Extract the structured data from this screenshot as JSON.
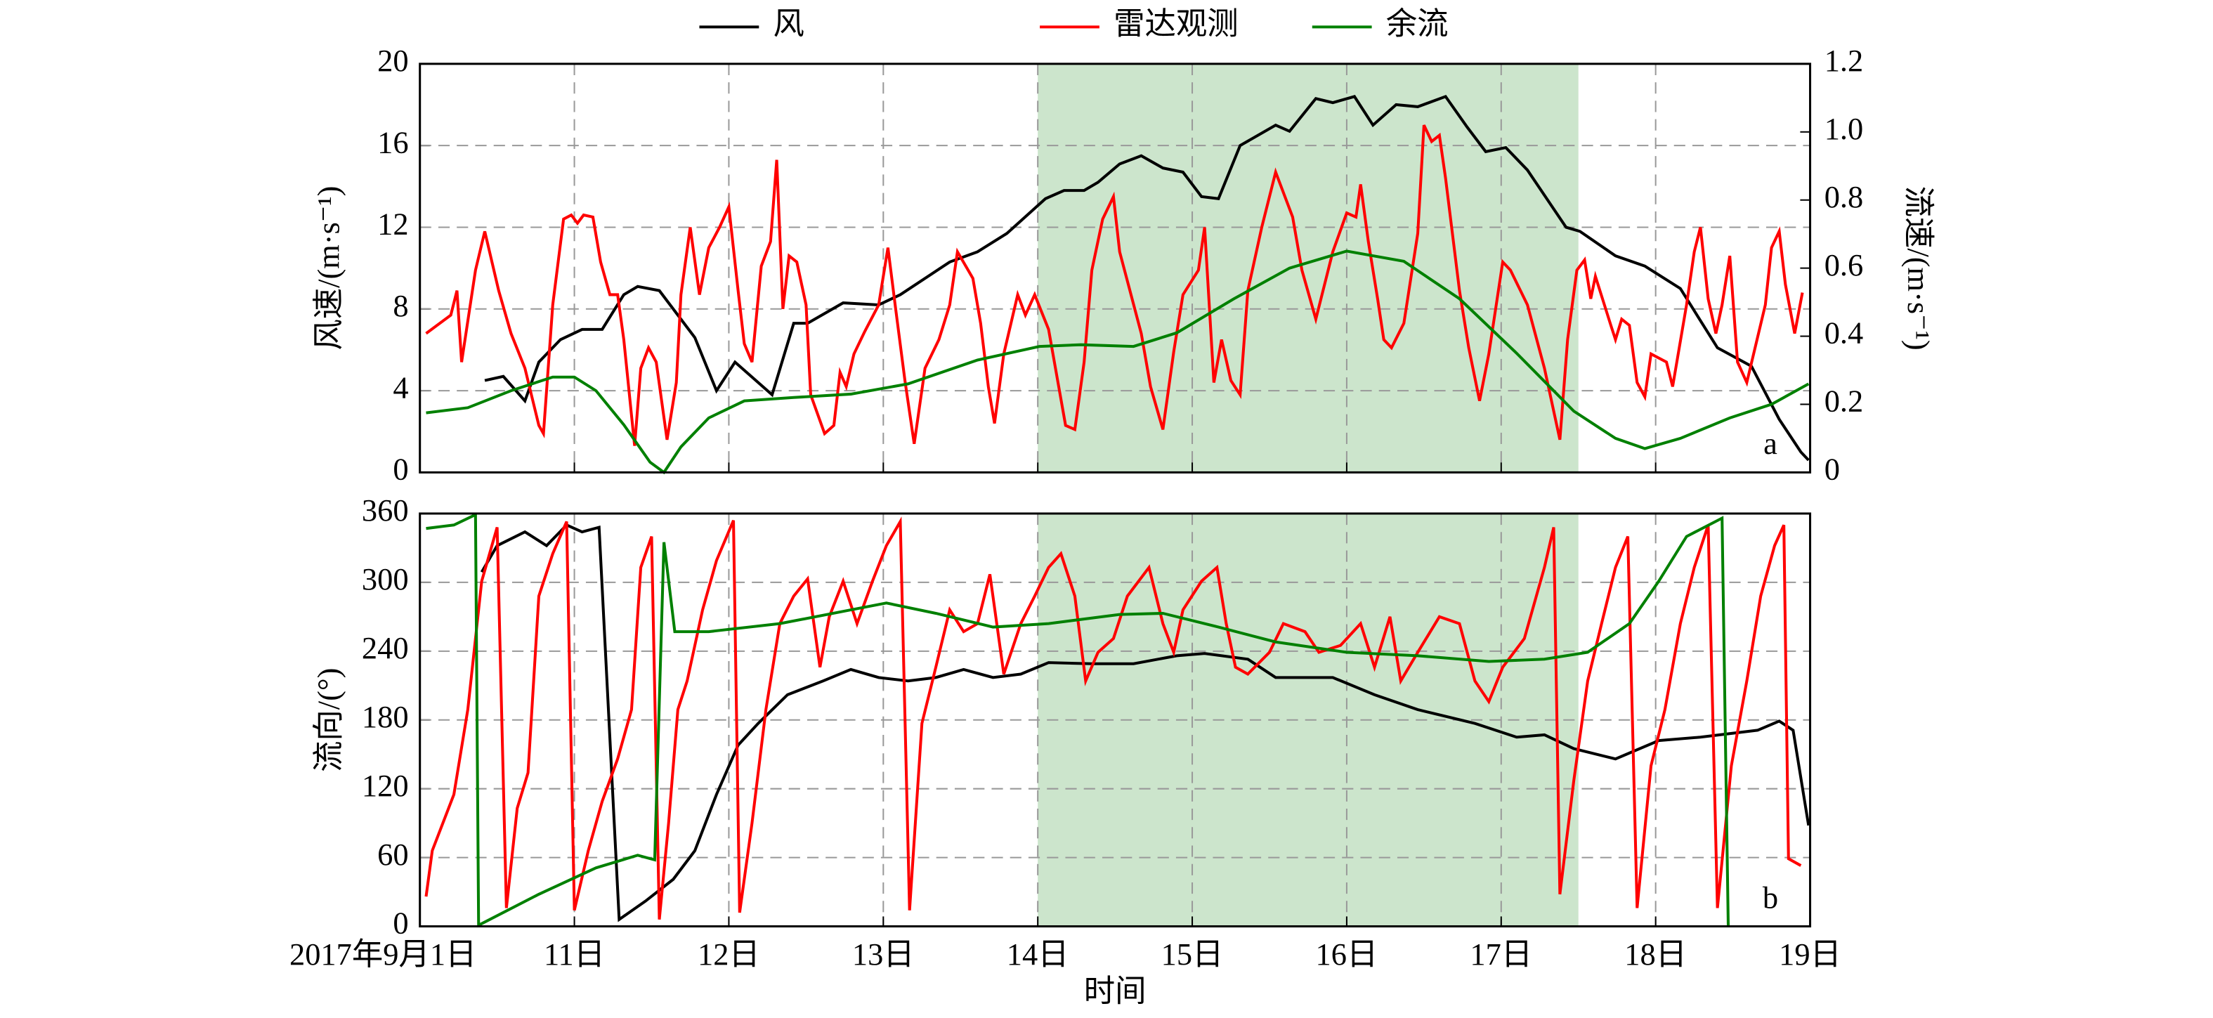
{
  "chart_data": [
    {
      "type": "line",
      "annotation": "a",
      "ylabel": "风速/(m·s⁻¹)",
      "y2label": "流速/(m·s⁻¹)",
      "xlim": [
        10,
        19
      ],
      "xticks": [
        11,
        12,
        13,
        14,
        15,
        16,
        17,
        18
      ],
      "ylim": [
        0,
        20
      ],
      "yticks": [
        0,
        4,
        8,
        12,
        16,
        20
      ],
      "y2lim": [
        0,
        1.2
      ],
      "y2ticks": [
        0,
        0.2,
        0.4,
        0.6,
        0.8,
        {
          "value": 1,
          "label": "1.0"
        },
        1.2
      ],
      "highlight": [
        14,
        17.5
      ],
      "highlight_color": "#cce5cc",
      "grid": true,
      "legend": "top",
      "series": [
        {
          "name": "风",
          "color": "#000000",
          "x": [
            10.42,
            10.54,
            10.68,
            10.77,
            10.91,
            11.05,
            11.18,
            11.32,
            11.41,
            11.55,
            11.78,
            11.92,
            12.04,
            12.28,
            12.42,
            12.51,
            12.74,
            12.97,
            13.11,
            13.29,
            13.43,
            13.61,
            13.8,
            14.05,
            14.17,
            14.3,
            14.39,
            14.53,
            14.67,
            14.81,
            14.94,
            15.06,
            15.17,
            15.31,
            15.54,
            15.63,
            15.8,
            15.91,
            16.05,
            16.17,
            16.32,
            16.46,
            16.64,
            16.78,
            16.9,
            17.03,
            17.17,
            17.42,
            17.51,
            17.74,
            17.93,
            18.16,
            18.4,
            18.62,
            18.8,
            18.94,
            18.99
          ],
          "values": [
            4.5,
            4.7,
            3.5,
            5.4,
            6.5,
            7.0,
            7.0,
            8.7,
            9.1,
            8.9,
            6.6,
            4.0,
            5.4,
            3.8,
            7.3,
            7.3,
            8.3,
            8.2,
            8.7,
            9.6,
            10.3,
            10.8,
            11.7,
            13.4,
            13.8,
            13.8,
            14.2,
            15.1,
            15.5,
            14.9,
            14.7,
            13.5,
            13.4,
            16.0,
            17.0,
            16.7,
            18.3,
            18.1,
            18.4,
            17.0,
            18.0,
            17.9,
            18.4,
            16.9,
            15.7,
            15.9,
            14.8,
            12.0,
            11.8,
            10.6,
            10.1,
            9.0,
            6.1,
            5.2,
            2.6,
            1.0,
            0.6
          ]
        },
        {
          "name": "雷达观测",
          "color": "#ff0000",
          "x": [
            10.04,
            10.2,
            10.24,
            10.27,
            10.36,
            10.42,
            10.51,
            10.59,
            10.68,
            10.77,
            10.8,
            10.86,
            10.93,
            10.98,
            11.02,
            11.06,
            11.12,
            11.17,
            11.23,
            11.28,
            11.32,
            11.39,
            11.43,
            11.48,
            11.53,
            11.6,
            11.66,
            11.69,
            11.75,
            11.81,
            11.87,
            11.94,
            12.0,
            12.06,
            12.1,
            12.15,
            12.21,
            12.27,
            12.31,
            12.35,
            12.39,
            12.44,
            12.5,
            12.53,
            12.62,
            12.68,
            12.72,
            12.76,
            12.81,
            12.88,
            12.97,
            13.03,
            13.08,
            13.14,
            13.2,
            13.27,
            13.36,
            13.43,
            13.48,
            13.58,
            13.63,
            13.68,
            13.72,
            13.78,
            13.87,
            13.92,
            13.98,
            14.07,
            14.18,
            14.24,
            14.3,
            14.35,
            14.42,
            14.49,
            14.53,
            14.67,
            14.73,
            14.81,
            14.88,
            14.94,
            15.04,
            15.08,
            15.14,
            15.19,
            15.25,
            15.31,
            15.36,
            15.45,
            15.54,
            15.65,
            15.71,
            15.8,
            15.91,
            16.0,
            16.06,
            16.09,
            16.14,
            16.2,
            16.24,
            16.29,
            16.37,
            16.46,
            16.5,
            16.55,
            16.6,
            16.64,
            16.73,
            16.79,
            16.86,
            16.92,
            17.01,
            17.06,
            17.17,
            17.28,
            17.38,
            17.43,
            17.49,
            17.54,
            17.58,
            17.61,
            17.71,
            17.74,
            17.78,
            17.83,
            17.88,
            17.93,
            17.97,
            18.07,
            18.11,
            18.2,
            18.25,
            18.29,
            18.34,
            18.39,
            18.43,
            18.48,
            18.53,
            18.59,
            18.71,
            18.75,
            18.8,
            18.84,
            18.9,
            18.95
          ],
          "values": [
            6.8,
            7.7,
            8.9,
            5.4,
            9.9,
            11.8,
            8.9,
            6.8,
            5.1,
            2.3,
            1.9,
            8.2,
            12.4,
            12.6,
            12.2,
            12.6,
            12.5,
            10.3,
            8.7,
            8.7,
            6.5,
            1.3,
            5.1,
            6.1,
            5.4,
            1.6,
            4.4,
            8.7,
            12.0,
            8.7,
            11.0,
            12.0,
            13.0,
            8.9,
            6.3,
            5.4,
            10.1,
            11.3,
            15.3,
            8.0,
            10.6,
            10.3,
            8.2,
            3.8,
            1.9,
            2.3,
            4.9,
            4.2,
            5.8,
            6.9,
            8.2,
            11.0,
            8.0,
            4.5,
            1.4,
            5.1,
            6.5,
            8.2,
            10.8,
            9.5,
            7.3,
            4.2,
            2.4,
            5.8,
            8.7,
            7.7,
            8.7,
            7.0,
            2.3,
            2.1,
            5.4,
            9.9,
            12.4,
            13.5,
            10.8,
            6.8,
            4.2,
            2.1,
            5.9,
            8.7,
            9.9,
            12.0,
            4.4,
            6.5,
            4.5,
            3.8,
            8.9,
            12.0,
            14.7,
            12.5,
            9.9,
            7.5,
            10.8,
            12.7,
            12.5,
            14.1,
            11.3,
            8.5,
            6.5,
            6.1,
            7.3,
            11.7,
            17.0,
            16.2,
            16.5,
            14.4,
            8.9,
            6.1,
            3.5,
            5.8,
            10.3,
            9.9,
            8.2,
            5.1,
            1.6,
            6.5,
            9.9,
            10.4,
            8.5,
            9.6,
            7.2,
            6.5,
            7.5,
            7.2,
            4.4,
            3.7,
            5.8,
            5.4,
            4.2,
            8.2,
            10.8,
            12.0,
            8.5,
            6.8,
            8.2,
            10.6,
            5.4,
            4.4,
            8.2,
            11.0,
            11.8,
            9.2,
            6.8,
            8.8
          ]
        },
        {
          "name": "余流",
          "color": "#008000",
          "axis": "y2",
          "x": [
            10.04,
            10.31,
            10.59,
            10.86,
            11.0,
            11.14,
            11.32,
            11.49,
            11.58,
            11.69,
            11.87,
            12.1,
            12.42,
            12.79,
            13.16,
            13.61,
            14.01,
            14.28,
            14.62,
            14.9,
            15.27,
            15.63,
            16.0,
            16.37,
            16.73,
            17.1,
            17.47,
            17.74,
            17.93,
            18.16,
            18.48,
            18.75,
            18.99
          ],
          "values": [
            0.175,
            0.19,
            0.24,
            0.28,
            0.28,
            0.24,
            0.14,
            0.03,
            0.0,
            0.075,
            0.16,
            0.21,
            0.22,
            0.23,
            0.26,
            0.33,
            0.37,
            0.375,
            0.37,
            0.41,
            0.51,
            0.6,
            0.65,
            0.62,
            0.51,
            0.35,
            0.18,
            0.1,
            0.07,
            0.1,
            0.16,
            0.2,
            0.26
          ]
        }
      ]
    },
    {
      "type": "line",
      "annotation": "b",
      "ylabel": "流向/(°)",
      "xlabel": "时间",
      "xlim": [
        10,
        19
      ],
      "xticks": [
        {
          "value": 10,
          "label": "2017年9月1日"
        },
        {
          "value": 11,
          "label": "11日"
        },
        {
          "value": 12,
          "label": "12日"
        },
        {
          "value": 13,
          "label": "13日"
        },
        {
          "value": 14,
          "label": "14日"
        },
        {
          "value": 15,
          "label": "15日"
        },
        {
          "value": 16,
          "label": "16日"
        },
        {
          "value": 17,
          "label": "17日"
        },
        {
          "value": 18,
          "label": "18日"
        },
        {
          "value": 19,
          "label": "19日"
        }
      ],
      "ylim": [
        0,
        360
      ],
      "yticks": [
        0,
        60,
        120,
        180,
        240,
        300,
        360
      ],
      "highlight": [
        14,
        17.5
      ],
      "highlight_color": "#cce5cc",
      "grid": true,
      "series": [
        {
          "color": "#000000",
          "x": [
            10.4,
            10.5,
            10.68,
            10.82,
            10.95,
            11.05,
            11.16,
            11.29,
            11.46,
            11.64,
            11.78,
            11.92,
            12.06,
            12.19,
            12.38,
            12.61,
            12.79,
            12.97,
            13.16,
            13.34,
            13.52,
            13.71,
            13.89,
            14.07,
            14.35,
            14.62,
            14.9,
            15.08,
            15.36,
            15.54,
            15.91,
            16.18,
            16.46,
            16.83,
            17.1,
            17.28,
            17.47,
            17.74,
            18.02,
            18.29,
            18.66,
            18.8,
            18.89,
            18.99
          ],
          "values": [
            309,
            332,
            344,
            332,
            350,
            344,
            348,
            6,
            22,
            41,
            66,
            115,
            158,
            177,
            202,
            214,
            224,
            217,
            214,
            217,
            224,
            217,
            220,
            230,
            229,
            229,
            236,
            238,
            233,
            217,
            217,
            202,
            189,
            177,
            165,
            167,
            155,
            146,
            162,
            165,
            171,
            179,
            171,
            88
          ]
        },
        {
          "color": "#ff0000",
          "x": [
            10.04,
            10.08,
            10.22,
            10.31,
            10.4,
            10.5,
            10.56,
            10.63,
            10.7,
            10.77,
            10.86,
            10.95,
            11.0,
            11.09,
            11.18,
            11.28,
            11.37,
            11.43,
            11.5,
            11.55,
            11.61,
            11.67,
            11.73,
            11.83,
            11.92,
            12.03,
            12.07,
            12.15,
            12.24,
            12.33,
            12.42,
            12.51,
            12.59,
            12.65,
            12.74,
            12.83,
            12.93,
            13.02,
            13.11,
            13.17,
            13.25,
            13.34,
            13.43,
            13.52,
            13.61,
            13.69,
            13.78,
            13.89,
            13.98,
            14.07,
            14.15,
            14.24,
            14.31,
            14.39,
            14.49,
            14.58,
            14.72,
            14.81,
            14.88,
            14.94,
            15.06,
            15.16,
            15.22,
            15.28,
            15.36,
            15.5,
            15.59,
            15.73,
            15.82,
            15.96,
            16.09,
            16.18,
            16.28,
            16.35,
            16.46,
            16.6,
            16.73,
            16.83,
            16.92,
            17.01,
            17.15,
            17.28,
            17.34,
            17.38,
            17.47,
            17.56,
            17.65,
            17.74,
            17.82,
            17.88,
            17.97,
            18.06,
            18.16,
            18.25,
            18.34,
            18.4,
            18.49,
            18.59,
            18.68,
            18.77,
            18.83,
            18.86,
            18.94
          ],
          "values": [
            26,
            66,
            115,
            189,
            301,
            348,
            16,
            103,
            134,
            288,
            325,
            353,
            14,
            66,
            109,
            146,
            189,
            313,
            340,
            6,
            90,
            189,
            214,
            276,
            319,
            354,
            12,
            90,
            189,
            264,
            288,
            303,
            226,
            270,
            301,
            264,
            301,
            332,
            353,
            14,
            177,
            226,
            276,
            257,
            264,
            307,
            220,
            264,
            288,
            313,
            325,
            288,
            214,
            239,
            251,
            288,
            313,
            264,
            239,
            276,
            301,
            313,
            264,
            226,
            220,
            239,
            264,
            257,
            239,
            245,
            264,
            226,
            270,
            214,
            239,
            270,
            264,
            214,
            196,
            226,
            251,
            313,
            348,
            28,
            127,
            214,
            264,
            313,
            340,
            16,
            140,
            189,
            264,
            313,
            350,
            16,
            140,
            214,
            288,
            332,
            350,
            59,
            53
          ]
        },
        {
          "color": "#008000",
          "x": [
            10.04,
            10.22,
            10.36,
            10.38,
            10.77,
            11.14,
            11.41,
            11.52,
            11.58,
            11.65,
            11.87,
            12.33,
            12.79,
            13.02,
            13.34,
            13.71,
            14.07,
            14.53,
            14.81,
            15.17,
            15.54,
            16.0,
            16.46,
            16.92,
            17.28,
            17.56,
            17.83,
            18.02,
            18.2,
            18.43,
            18.47
          ],
          "values": [
            347,
            350,
            359,
            1,
            28,
            51,
            62,
            58,
            335,
            257,
            257,
            264,
            276,
            282,
            273,
            261,
            264,
            272,
            273,
            261,
            248,
            239,
            236,
            231,
            233,
            239,
            264,
            301,
            340,
            356,
            0
          ]
        }
      ]
    }
  ]
}
